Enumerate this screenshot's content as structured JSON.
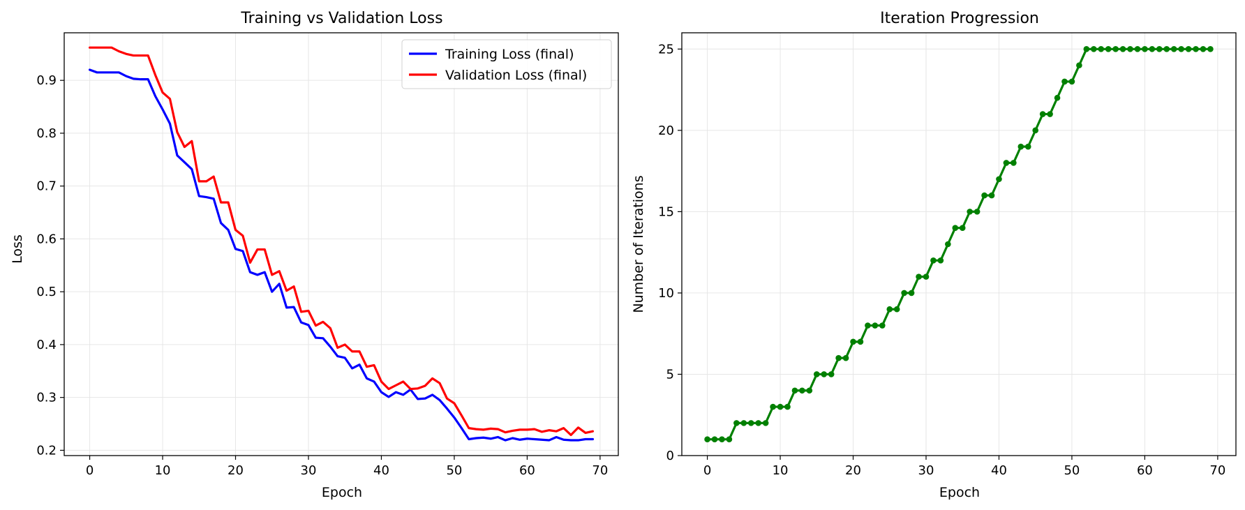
{
  "chart_data": [
    {
      "type": "line",
      "title": "Training vs Validation Loss",
      "xlabel": "Epoch",
      "ylabel": "Loss",
      "xlim": [
        -3.5,
        72.5
      ],
      "ylim": [
        0.19,
        0.99
      ],
      "xticks": [
        0,
        10,
        20,
        30,
        40,
        50,
        60,
        70
      ],
      "yticks": [
        0.2,
        0.3,
        0.4,
        0.5,
        0.6,
        0.7,
        0.8,
        0.9
      ],
      "ytick_labels": [
        "0.2",
        "0.3",
        "0.4",
        "0.5",
        "0.6",
        "0.7",
        "0.8",
        "0.9"
      ],
      "grid": true,
      "legend_position": "upper right",
      "x": [
        0,
        1,
        2,
        3,
        4,
        5,
        6,
        7,
        8,
        9,
        10,
        11,
        12,
        13,
        14,
        15,
        16,
        17,
        18,
        19,
        20,
        21,
        22,
        23,
        24,
        25,
        26,
        27,
        28,
        29,
        30,
        31,
        32,
        33,
        34,
        35,
        36,
        37,
        38,
        39,
        40,
        41,
        42,
        43,
        44,
        45,
        46,
        47,
        48,
        49,
        50,
        51,
        52,
        53,
        54,
        55,
        56,
        57,
        58,
        59,
        60,
        61,
        62,
        63,
        64,
        65,
        66,
        67,
        68,
        69
      ],
      "series": [
        {
          "name": "Training Loss (final)",
          "color": "#0000ff",
          "values": [
            0.92,
            0.915,
            0.915,
            0.915,
            0.915,
            0.908,
            0.903,
            0.902,
            0.902,
            0.87,
            0.845,
            0.818,
            0.758,
            0.745,
            0.732,
            0.681,
            0.679,
            0.676,
            0.63,
            0.617,
            0.581,
            0.577,
            0.537,
            0.532,
            0.537,
            0.5,
            0.515,
            0.47,
            0.471,
            0.442,
            0.437,
            0.413,
            0.412,
            0.396,
            0.378,
            0.375,
            0.355,
            0.362,
            0.336,
            0.33,
            0.31,
            0.301,
            0.31,
            0.305,
            0.315,
            0.297,
            0.298,
            0.305,
            0.295,
            0.279,
            0.262,
            0.242,
            0.221,
            0.223,
            0.224,
            0.222,
            0.225,
            0.219,
            0.223,
            0.22,
            0.222,
            0.221,
            0.22,
            0.219,
            0.225,
            0.22,
            0.219,
            0.219,
            0.221,
            0.221
          ]
        },
        {
          "name": "Validation Loss (final)",
          "color": "#ff0000",
          "values": [
            0.962,
            0.962,
            0.962,
            0.962,
            0.955,
            0.95,
            0.947,
            0.947,
            0.947,
            0.91,
            0.877,
            0.865,
            0.802,
            0.774,
            0.785,
            0.709,
            0.709,
            0.718,
            0.669,
            0.669,
            0.617,
            0.606,
            0.555,
            0.58,
            0.58,
            0.532,
            0.539,
            0.502,
            0.51,
            0.462,
            0.464,
            0.436,
            0.443,
            0.431,
            0.394,
            0.4,
            0.387,
            0.387,
            0.358,
            0.361,
            0.33,
            0.316,
            0.323,
            0.33,
            0.316,
            0.317,
            0.322,
            0.336,
            0.327,
            0.298,
            0.289,
            0.266,
            0.242,
            0.24,
            0.239,
            0.241,
            0.24,
            0.234,
            0.237,
            0.239,
            0.239,
            0.24,
            0.235,
            0.238,
            0.236,
            0.242,
            0.229,
            0.243,
            0.233,
            0.236
          ]
        }
      ]
    },
    {
      "type": "line",
      "title": "Iteration Progression",
      "xlabel": "Epoch",
      "ylabel": "Number of Iterations",
      "xlim": [
        -3.5,
        72.5
      ],
      "ylim": [
        0,
        26
      ],
      "xticks": [
        0,
        10,
        20,
        30,
        40,
        50,
        60,
        70
      ],
      "yticks": [
        0,
        5,
        10,
        15,
        20,
        25
      ],
      "ytick_labels": [
        "0",
        "5",
        "10",
        "15",
        "20",
        "25"
      ],
      "grid": true,
      "markers": true,
      "x": [
        0,
        1,
        2,
        3,
        4,
        5,
        6,
        7,
        8,
        9,
        10,
        11,
        12,
        13,
        14,
        15,
        16,
        17,
        18,
        19,
        20,
        21,
        22,
        23,
        24,
        25,
        26,
        27,
        28,
        29,
        30,
        31,
        32,
        33,
        34,
        35,
        36,
        37,
        38,
        39,
        40,
        41,
        42,
        43,
        44,
        45,
        46,
        47,
        48,
        49,
        50,
        51,
        52,
        53,
        54,
        55,
        56,
        57,
        58,
        59,
        60,
        61,
        62,
        63,
        64,
        65,
        66,
        67,
        68,
        69
      ],
      "series": [
        {
          "color": "#008000",
          "values": [
            1,
            1,
            1,
            1,
            2,
            2,
            2,
            2,
            2,
            3,
            3,
            3,
            4,
            4,
            4,
            5,
            5,
            5,
            6,
            6,
            7,
            7,
            8,
            8,
            8,
            9,
            9,
            10,
            10,
            11,
            11,
            12,
            12,
            13,
            14,
            14,
            15,
            15,
            16,
            16,
            17,
            18,
            18,
            19,
            19,
            20,
            21,
            21,
            22,
            23,
            23,
            24,
            25,
            25,
            25,
            25,
            25,
            25,
            25,
            25,
            25,
            25,
            25,
            25,
            25,
            25,
            25,
            25,
            25,
            25
          ]
        }
      ]
    }
  ]
}
